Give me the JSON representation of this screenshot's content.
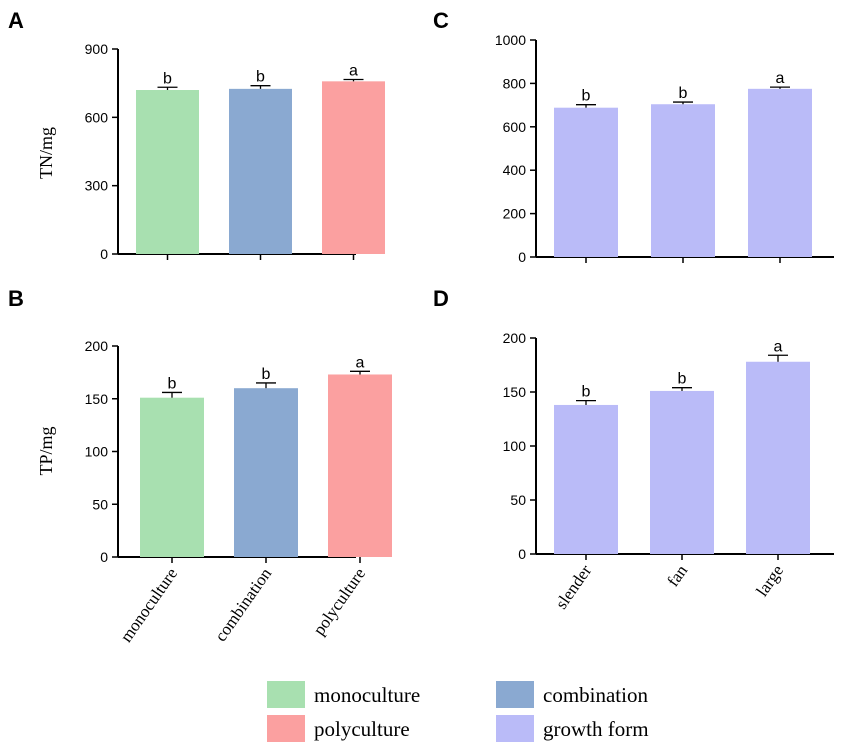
{
  "legend": [
    {
      "label": "monoculture",
      "color": "#a8e0b0"
    },
    {
      "label": "combination",
      "color": "#8aa9d1"
    },
    {
      "label": "polyculture",
      "color": "#fba0a0"
    },
    {
      "label": "growth form",
      "color": "#babbf8"
    }
  ],
  "chart_data": [
    {
      "panel": "A",
      "type": "bar",
      "ylabel": "TN/mg",
      "categories": [
        "monoculture",
        "combination",
        "polyculture"
      ],
      "show_xlabels": false,
      "values": [
        720,
        725,
        758
      ],
      "errors": [
        12,
        14,
        8
      ],
      "letters": [
        "b",
        "b",
        "a"
      ],
      "colors": [
        "#a8e0b0",
        "#8aa9d1",
        "#fba0a0"
      ],
      "ylim": [
        0,
        900
      ],
      "yticks": [
        0,
        300,
        600,
        900
      ]
    },
    {
      "panel": "B",
      "type": "bar",
      "ylabel": "TP/mg",
      "categories": [
        "monoculture",
        "combination",
        "polyculture"
      ],
      "show_xlabels": true,
      "values": [
        151,
        160,
        173
      ],
      "errors": [
        5,
        5,
        3
      ],
      "letters": [
        "b",
        "b",
        "a"
      ],
      "colors": [
        "#a8e0b0",
        "#8aa9d1",
        "#fba0a0"
      ],
      "ylim": [
        0,
        200
      ],
      "yticks": [
        0,
        50,
        100,
        150,
        200
      ]
    },
    {
      "panel": "C",
      "type": "bar",
      "ylabel": "",
      "categories": [
        "slender",
        "fan",
        "large"
      ],
      "show_xlabels": false,
      "values": [
        688,
        704,
        775
      ],
      "errors": [
        14,
        10,
        8
      ],
      "letters": [
        "b",
        "b",
        "a"
      ],
      "colors": [
        "#babbf8",
        "#babbf8",
        "#babbf8"
      ],
      "ylim": [
        0,
        1000
      ],
      "yticks": [
        0,
        200,
        400,
        600,
        800,
        1000
      ]
    },
    {
      "panel": "D",
      "type": "bar",
      "ylabel": "",
      "categories": [
        "slender",
        "fan",
        "large"
      ],
      "show_xlabels": true,
      "values": [
        138,
        151,
        178
      ],
      "errors": [
        4,
        3,
        6
      ],
      "letters": [
        "b",
        "b",
        "a"
      ],
      "colors": [
        "#babbf8",
        "#babbf8",
        "#babbf8"
      ],
      "ylim": [
        0,
        200
      ],
      "yticks": [
        0,
        50,
        100,
        150,
        200
      ]
    }
  ]
}
